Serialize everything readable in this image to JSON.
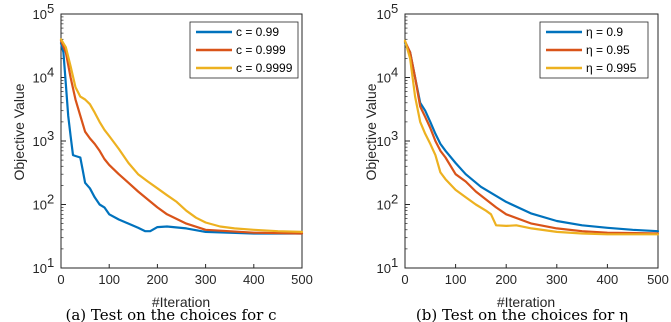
{
  "colors": {
    "blue": "#0072BD",
    "red": "#D95319",
    "yellow": "#EDB120",
    "axis": "#262626"
  },
  "chart_data": [
    {
      "type": "line",
      "ylabel": "Objective Value",
      "xlabel": "#Iteration",
      "caption": "(a) Test on the choices for c",
      "xlim": [
        0,
        500
      ],
      "ylim": [
        10,
        100000
      ],
      "yscale": "log",
      "xticks": [
        "0",
        "100",
        "200",
        "300",
        "400",
        "500"
      ],
      "yticks": [
        "10",
        "10",
        "10",
        "10",
        "10"
      ],
      "ytick_exps": [
        "1",
        "2",
        "3",
        "4",
        "5"
      ],
      "legend_placement": "top-right",
      "series": [
        {
          "name": "c = 0.99",
          "color": "blue",
          "x": [
            0,
            5,
            10,
            15,
            20,
            25,
            30,
            40,
            45,
            50,
            60,
            70,
            80,
            90,
            100,
            120,
            140,
            160,
            175,
            185,
            200,
            220,
            260,
            300,
            400,
            500
          ],
          "y": [
            35000,
            25000,
            8000,
            2500,
            1200,
            600,
            580,
            550,
            350,
            220,
            180,
            130,
            100,
            90,
            70,
            58,
            50,
            43,
            38,
            38,
            44,
            45,
            42,
            37,
            35,
            35
          ]
        },
        {
          "name": "c = 0.999",
          "color": "red",
          "x": [
            0,
            10,
            20,
            30,
            40,
            50,
            60,
            70,
            80,
            90,
            100,
            120,
            140,
            160,
            180,
            200,
            220,
            260,
            300,
            400,
            500
          ],
          "y": [
            38000,
            25000,
            10000,
            4500,
            2500,
            1400,
            1100,
            900,
            700,
            520,
            420,
            300,
            220,
            160,
            120,
            90,
            70,
            50,
            40,
            36,
            35
          ]
        },
        {
          "name": "c = 0.9999",
          "color": "yellow",
          "x": [
            0,
            10,
            20,
            30,
            40,
            50,
            60,
            70,
            80,
            90,
            100,
            120,
            140,
            160,
            180,
            200,
            220,
            240,
            260,
            280,
            300,
            330,
            360,
            400,
            450,
            500
          ],
          "y": [
            40000,
            30000,
            15000,
            7000,
            5000,
            4500,
            3800,
            2800,
            2000,
            1500,
            1200,
            750,
            450,
            300,
            230,
            180,
            140,
            110,
            80,
            62,
            52,
            45,
            42,
            40,
            38,
            37
          ]
        }
      ]
    },
    {
      "type": "line",
      "ylabel": "Objective Value",
      "xlabel": "#Iteration",
      "caption": "(b) Test on the choices for η",
      "xlim": [
        0,
        500
      ],
      "ylim": [
        10,
        100000
      ],
      "yscale": "log",
      "xticks": [
        "0",
        "100",
        "200",
        "300",
        "400",
        "500"
      ],
      "yticks": [
        "10",
        "10",
        "10",
        "10",
        "10"
      ],
      "ytick_exps": [
        "1",
        "2",
        "3",
        "4",
        "5"
      ],
      "legend_placement": "top-right",
      "series": [
        {
          "name": "η = 0.9",
          "color": "blue",
          "x": [
            0,
            10,
            20,
            30,
            40,
            50,
            60,
            70,
            80,
            100,
            120,
            150,
            200,
            250,
            300,
            350,
            400,
            450,
            500
          ],
          "y": [
            35000,
            25000,
            10000,
            4000,
            3000,
            2000,
            1300,
            900,
            700,
            450,
            300,
            190,
            110,
            72,
            55,
            47,
            43,
            40,
            38
          ]
        },
        {
          "name": "η = 0.95",
          "color": "red",
          "x": [
            0,
            10,
            20,
            30,
            40,
            50,
            60,
            70,
            80,
            100,
            120,
            140,
            160,
            180,
            200,
            250,
            300,
            350,
            400,
            500
          ],
          "y": [
            37000,
            25000,
            10000,
            3500,
            2400,
            1600,
            1000,
            700,
            550,
            300,
            230,
            160,
            120,
            90,
            70,
            50,
            42,
            38,
            36,
            35
          ]
        },
        {
          "name": "η = 0.995",
          "color": "yellow",
          "x": [
            0,
            10,
            20,
            30,
            40,
            50,
            60,
            70,
            80,
            100,
            120,
            140,
            160,
            170,
            180,
            200,
            220,
            250,
            300,
            350,
            400,
            500
          ],
          "y": [
            38000,
            20000,
            5000,
            2000,
            1300,
            900,
            600,
            320,
            250,
            170,
            130,
            100,
            80,
            70,
            47,
            46,
            47,
            42,
            37,
            35,
            34,
            34
          ]
        }
      ]
    }
  ]
}
